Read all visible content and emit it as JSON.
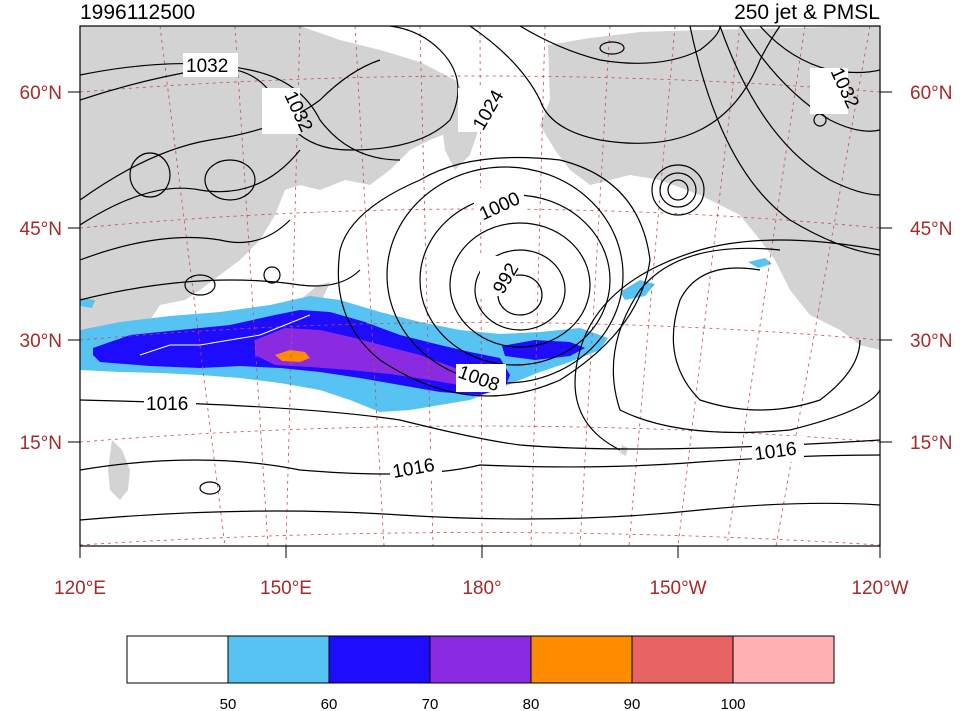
{
  "title_left": "1996112500",
  "title_right": "250 jet & PMSL",
  "lat_labels": [
    "60°N",
    "45°N",
    "30°N",
    "15°N"
  ],
  "lon_labels": [
    "120°E",
    "150°E",
    "180°",
    "150°W",
    "120°W"
  ],
  "contour_labels": [
    "1032",
    "1032",
    "1032",
    "1024",
    "1000",
    "992",
    "1008",
    "1016",
    "1016",
    "1016"
  ],
  "colorbar": {
    "colors": [
      "#ffffff",
      "#56c3f2",
      "#1e0cff",
      "#8a2be2",
      "#ff8c00",
      "#e86464",
      "#ffb0b0"
    ],
    "labels": [
      "50",
      "60",
      "70",
      "80",
      "90",
      "100"
    ]
  },
  "style": {
    "land": "#d3d3d3",
    "tick_color": "#a52a2a",
    "grid_color": "#c05050"
  }
}
